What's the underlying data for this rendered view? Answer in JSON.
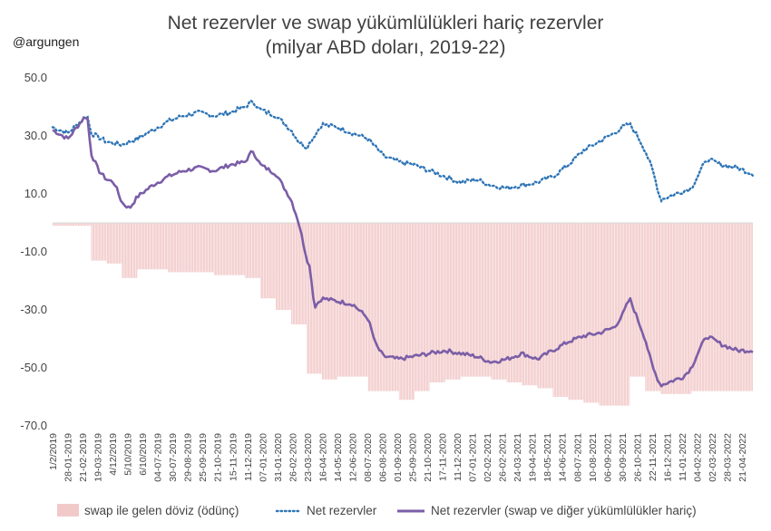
{
  "header": {
    "title_line1": "Net rezervler ve swap yükümlülükleri hariç rezervler",
    "title_line2": "(milyar ABD doları, 2019-22)",
    "watermark": "@argungen"
  },
  "colors": {
    "swap_fill": "#f2c9c9",
    "net_reserves": "#2e75b6",
    "net_excl_swap": "#7b5ea7"
  },
  "chart_data": {
    "type": "line",
    "title": "Net rezervler ve swap yükümlülükleri hariç rezervler (milyar ABD doları, 2019-22)",
    "ylim": [
      -70,
      50
    ],
    "ytick_labels": [
      "50.0",
      "30.0",
      "10.0",
      "-10.0",
      "-30.0",
      "-50.0",
      "-70.0"
    ],
    "ytick_values": [
      50,
      30,
      10,
      -10,
      -30,
      -50,
      -70
    ],
    "xtick_labels": [
      "1/2/2019",
      "28-01-2019",
      "21-02-2019",
      "19-03-2019",
      "4/12/2019",
      "5/10/2019",
      "6/10/2019",
      "04-07-2019",
      "30-07-2019",
      "29-08-2019",
      "25-09-2019",
      "21-10-2019",
      "15-11-2019",
      "11-12-2019",
      "07-01-2020",
      "31-01-2020",
      "26-02-2020",
      "23-03-2020",
      "16-04-2020",
      "14-05-2020",
      "12-06-2020",
      "08-07-2020",
      "06-08-2020",
      "01-09-2020",
      "25-09-2020",
      "21-10-2020",
      "17-11-2020",
      "11-12-2020",
      "07-01-2021",
      "02-02-2021",
      "26-02-2021",
      "24-03-2021",
      "19-04-2021",
      "18-05-2021",
      "14-06-2021",
      "08-07-2021",
      "10-08-2021",
      "06-09-2021",
      "30-09-2021",
      "26-10-2021",
      "22-11-2021",
      "16-12-2021",
      "11-01-2022",
      "04-02-2022",
      "02-03-2022",
      "28-03-2022",
      "21-04-2022"
    ],
    "series": [
      {
        "name": "swap ile gelen döviz (ödünç)",
        "style": "bars",
        "x": [
          0,
          6,
          10,
          14,
          18,
          22,
          26,
          30,
          34,
          38,
          42,
          46,
          50,
          54,
          58,
          62,
          66,
          70,
          74,
          78,
          82,
          86,
          90,
          94,
          98,
          102,
          106,
          110,
          114,
          118,
          122,
          126,
          130,
          134,
          138,
          142,
          146,
          150,
          154,
          158,
          162,
          166,
          170,
          174,
          178,
          182
        ],
        "values": [
          -1,
          -1,
          -13,
          -14,
          -19,
          -16,
          -16,
          -17,
          -17,
          -17,
          -18,
          -18,
          -19,
          -26,
          -30,
          -35,
          -52,
          -54,
          -53,
          -53,
          -58,
          -58,
          -61,
          -58,
          -55,
          -54,
          -53,
          -53,
          -54,
          -55,
          -56,
          -57,
          -60,
          -61,
          -62,
          -63,
          -63,
          -53,
          -58,
          -59,
          -59,
          -58,
          -58,
          -58,
          -58,
          -58
        ]
      },
      {
        "name": "Net rezervler",
        "style": "dotted",
        "x": [
          0,
          4,
          8,
          9,
          10,
          14,
          18,
          22,
          26,
          30,
          34,
          38,
          42,
          46,
          50,
          52,
          54,
          58,
          62,
          64,
          66,
          70,
          74,
          78,
          82,
          84,
          86,
          90,
          94,
          98,
          102,
          106,
          110,
          114,
          118,
          122,
          126,
          130,
          134,
          138,
          142,
          146,
          148,
          150,
          152,
          154,
          156,
          158,
          162,
          166,
          170,
          174,
          178,
          182
        ],
        "values": [
          33,
          31,
          36,
          37,
          31,
          28,
          27,
          29,
          32,
          35,
          37,
          38,
          37,
          38,
          40,
          42,
          39,
          37,
          32,
          28,
          26,
          34,
          33,
          31,
          29,
          26,
          23,
          21,
          20,
          18,
          16,
          14,
          15,
          13,
          12,
          13,
          14,
          16,
          20,
          25,
          28,
          31,
          33,
          34,
          30,
          25,
          18,
          8,
          10,
          12,
          22,
          20,
          19,
          17
        ]
      },
      {
        "name": "Net rezervler (swap ve diğer yükümlülükler hariç)",
        "style": "line",
        "x": [
          0,
          4,
          8,
          9,
          10,
          12,
          14,
          16,
          18,
          20,
          22,
          26,
          30,
          34,
          38,
          42,
          46,
          50,
          52,
          54,
          58,
          62,
          64,
          66,
          67,
          68,
          70,
          74,
          78,
          82,
          84,
          86,
          90,
          94,
          98,
          102,
          106,
          110,
          114,
          118,
          122,
          126,
          130,
          134,
          138,
          142,
          146,
          148,
          150,
          152,
          154,
          156,
          158,
          162,
          164,
          166,
          168,
          170,
          174,
          178,
          182
        ],
        "values": [
          32,
          29,
          36,
          37,
          24,
          18,
          15,
          14,
          7,
          5,
          9,
          13,
          16,
          18,
          19,
          18,
          20,
          21,
          25,
          20,
          17,
          8,
          0,
          -12,
          -16,
          -29,
          -26,
          -27,
          -28,
          -33,
          -42,
          -46,
          -47,
          -46,
          -45,
          -44,
          -45,
          -46,
          -48,
          -47,
          -45,
          -47,
          -44,
          -41,
          -39,
          -38,
          -36,
          -32,
          -26,
          -33,
          -40,
          -50,
          -56,
          -54,
          -53,
          -50,
          -44,
          -39,
          -42,
          -44,
          -44
        ]
      }
    ],
    "legend_position": "bottom",
    "grid": false
  }
}
